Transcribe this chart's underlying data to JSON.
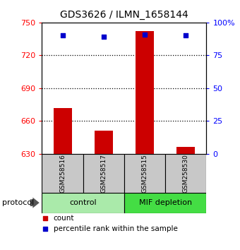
{
  "title": "GDS3626 / ILMN_1658144",
  "samples": [
    "GSM258516",
    "GSM258517",
    "GSM258515",
    "GSM258530"
  ],
  "count_values": [
    672,
    651,
    742,
    636
  ],
  "percentile_values": [
    90,
    89,
    91,
    90
  ],
  "ylim_left": [
    630,
    750
  ],
  "yticks_left": [
    630,
    660,
    690,
    720,
    750
  ],
  "ylim_right": [
    0,
    100
  ],
  "yticks_right": [
    0,
    25,
    50,
    75,
    100
  ],
  "ytick_labels_right": [
    "0",
    "25",
    "50",
    "75",
    "100%"
  ],
  "bar_color": "#cc0000",
  "dot_color": "#0000cc",
  "bar_bottom": 630,
  "groups": [
    {
      "label": "control",
      "samples": [
        0,
        1
      ],
      "color": "#aaeaaa"
    },
    {
      "label": "MIF depletion",
      "samples": [
        2,
        3
      ],
      "color": "#44dd44"
    }
  ],
  "group_bg_color": "#c8c8c8",
  "protocol_text": "protocol",
  "legend_count_label": "count",
  "legend_pct_label": "percentile rank within the sample",
  "gridline_color": "#000000",
  "title_fontsize": 10,
  "tick_fontsize": 8,
  "bar_width": 0.45,
  "gridlines_at": [
    660,
    690,
    720
  ]
}
